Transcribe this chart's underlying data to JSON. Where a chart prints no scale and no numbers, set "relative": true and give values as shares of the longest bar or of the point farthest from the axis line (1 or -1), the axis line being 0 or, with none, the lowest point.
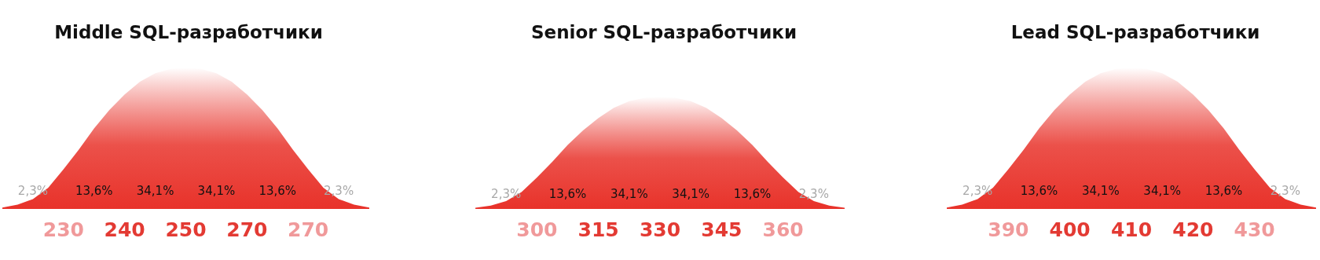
{
  "chart_data": [
    {
      "type": "area",
      "title": "Middle SQL-разработчики",
      "relative": true,
      "categories": [
        null,
        null,
        null,
        null,
        "230",
        null,
        null,
        null,
        "240",
        null,
        null,
        null,
        "250",
        null,
        null,
        null,
        "270",
        null,
        null,
        null,
        "270",
        null,
        null,
        null,
        null
      ],
      "series": [
        {
          "color": "#e8322a",
          "values": [
            0.01,
            0.03,
            0.07,
            0.15,
            0.28,
            0.42,
            0.57,
            0.7,
            0.81,
            0.9,
            0.96,
            0.99,
            1,
            0.99,
            0.96,
            0.9,
            0.81,
            0.7,
            0.57,
            0.42,
            0.28,
            0.15,
            0.07,
            0.03,
            0.01
          ]
        }
      ],
      "annotations": [
        "2,3%",
        "13,6%",
        "34,1%",
        "34,1%",
        "13,6%",
        "2,3%"
      ]
    },
    {
      "type": "area",
      "title": "Senior SQL-разработчики",
      "relative": true,
      "categories": [
        null,
        null,
        null,
        null,
        "300",
        null,
        null,
        null,
        "315",
        null,
        null,
        null,
        "330",
        null,
        null,
        null,
        "345",
        null,
        null,
        null,
        "360",
        null,
        null,
        null,
        null
      ],
      "series": [
        {
          "color": "#e8322a",
          "values": [
            0.01,
            0.03,
            0.07,
            0.15,
            0.28,
            0.42,
            0.57,
            0.7,
            0.81,
            0.9,
            0.96,
            0.99,
            1,
            0.99,
            0.96,
            0.9,
            0.81,
            0.7,
            0.57,
            0.42,
            0.28,
            0.15,
            0.07,
            0.03,
            0.01
          ]
        }
      ],
      "annotations": [
        "2,3%",
        "13,6%",
        "34,1%",
        "34,1%",
        "13,6%",
        "2,3%"
      ]
    },
    {
      "type": "area",
      "title": "Lead SQL-разработчики",
      "relative": true,
      "categories": [
        null,
        null,
        null,
        null,
        "390",
        null,
        null,
        null,
        "400",
        null,
        null,
        null,
        "410",
        null,
        null,
        null,
        "420",
        null,
        null,
        null,
        "430",
        null,
        null,
        null,
        null
      ],
      "series": [
        {
          "color": "#e8322a",
          "values": [
            0.01,
            0.03,
            0.07,
            0.15,
            0.28,
            0.42,
            0.57,
            0.7,
            0.81,
            0.9,
            0.96,
            0.99,
            1,
            0.99,
            0.96,
            0.9,
            0.81,
            0.7,
            0.57,
            0.42,
            0.28,
            0.15,
            0.07,
            0.03,
            0.01
          ]
        }
      ],
      "annotations": [
        "2,3%",
        "13,6%",
        "34,1%",
        "34,1%",
        "13,6%",
        "2,3%"
      ]
    }
  ]
}
